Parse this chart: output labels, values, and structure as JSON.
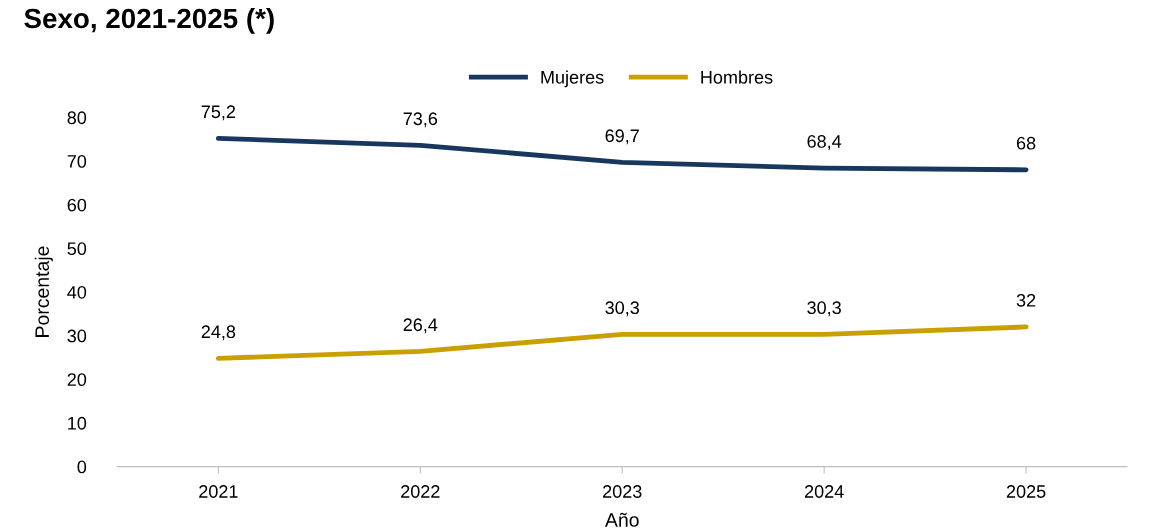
{
  "chart_data": {
    "type": "line",
    "title": "Sexo, 2021-2025 (*)",
    "xlabel": "Año",
    "ylabel": "Porcentaje",
    "categories": [
      "2021",
      "2022",
      "2023",
      "2024",
      "2025"
    ],
    "series": [
      {
        "name": "Mujeres",
        "color": "#17375e",
        "values": [
          75.2,
          73.6,
          69.7,
          68.4,
          68
        ],
        "value_labels": [
          "75,2",
          "73,6",
          "69,7",
          "68,4",
          "68"
        ]
      },
      {
        "name": "Hombres",
        "color": "#c9a000",
        "values": [
          24.8,
          26.4,
          30.3,
          30.3,
          32
        ],
        "value_labels": [
          "24,8",
          "26,4",
          "30,3",
          "30,3",
          "32"
        ]
      }
    ],
    "ylim": [
      0,
      80
    ],
    "yticks": [
      0,
      10,
      20,
      30,
      40,
      50,
      60,
      70,
      80
    ],
    "grid": false,
    "legend": "top",
    "marker": "none",
    "line_style": "solid"
  }
}
